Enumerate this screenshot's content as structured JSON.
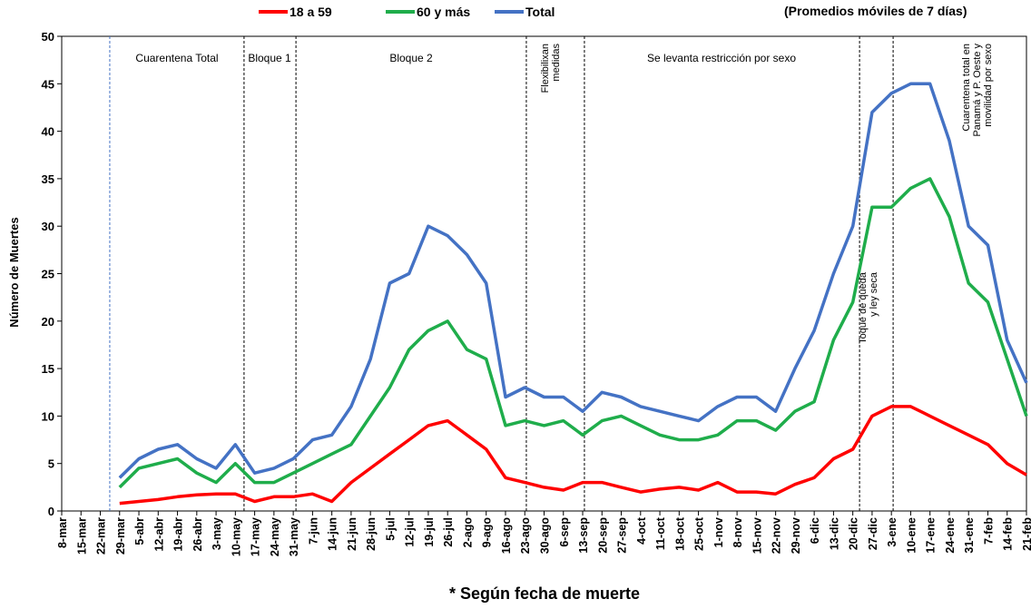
{
  "chart_data": {
    "type": "line",
    "subtitle": "(Promedios móviles de 7 días)",
    "y_label": "Número de Muertes",
    "footnote": "* Según fecha de muerte",
    "categories": [
      "8-mar",
      "15-mar",
      "22-mar",
      "29-mar",
      "5-abr",
      "12-abr",
      "19-abr",
      "26-abr",
      "3-may",
      "10-may",
      "17-may",
      "24-may",
      "31-may",
      "7-jun",
      "14-jun",
      "21-jun",
      "28-jun",
      "5-jul",
      "12-jul",
      "19-jul",
      "26-jul",
      "2-ago",
      "9-ago",
      "16-ago",
      "23-ago",
      "30-ago",
      "6-sep",
      "13-sep",
      "20-sep",
      "27-sep",
      "4-oct",
      "11-oct",
      "18-oct",
      "25-oct",
      "1-nov",
      "8-nov",
      "15-nov",
      "22-nov",
      "29-nov",
      "6-dic",
      "13-dic",
      "20-dic",
      "27-dic",
      "3-ene",
      "10-ene",
      "17-ene",
      "24-ene",
      "31-ene",
      "7-feb",
      "14-feb",
      "21-feb"
    ],
    "series": [
      {
        "name": "18 a 59",
        "color": "#ff0000",
        "values": [
          null,
          null,
          null,
          0.8,
          1,
          1.2,
          1.5,
          1.7,
          1.8,
          1.8,
          1,
          1.5,
          1.5,
          1.8,
          1,
          3,
          4.5,
          6,
          7.5,
          9,
          9.5,
          8,
          6.5,
          3.5,
          3,
          2.5,
          2.2,
          3,
          3,
          2.5,
          2,
          2.3,
          2.5,
          2.2,
          3,
          2,
          2,
          1.8,
          2.8,
          3.5,
          5.5,
          6.5,
          10,
          11,
          11,
          10,
          9,
          8,
          7,
          5,
          3.8
        ]
      },
      {
        "name": "60 y más",
        "color": "#1fad4b",
        "values": [
          null,
          null,
          null,
          2.5,
          4.5,
          5,
          5.5,
          4,
          3,
          5,
          3,
          3,
          4,
          5,
          6,
          7,
          10,
          13,
          17,
          19,
          20,
          17,
          16,
          9,
          9.5,
          9,
          9.5,
          8,
          9.5,
          10,
          9,
          8,
          7.5,
          7.5,
          8,
          9.5,
          9.5,
          8.5,
          10.5,
          11.5,
          18,
          22,
          32,
          32,
          34,
          35,
          31,
          24,
          22,
          16,
          10
        ]
      },
      {
        "name": "Total",
        "color": "#4472c4",
        "values": [
          null,
          null,
          null,
          3.5,
          5.5,
          6.5,
          7,
          5.5,
          4.5,
          7,
          4,
          4.5,
          5.5,
          7.5,
          8,
          11,
          16,
          24,
          25,
          30,
          29,
          27,
          24,
          12,
          13,
          12,
          12,
          10.5,
          12.5,
          12,
          11,
          10.5,
          10,
          9.5,
          11,
          12,
          12,
          10.5,
          15,
          19,
          25,
          30,
          42,
          44,
          45,
          45,
          39,
          30,
          28,
          18,
          13.5
        ]
      }
    ],
    "ylim": [
      0,
      50
    ],
    "yticks": [
      0,
      5,
      10,
      15,
      20,
      25,
      30,
      35,
      40,
      45,
      50
    ],
    "grid": false,
    "annotations": [
      {
        "lines": [
          "Cuarentena Total"
        ]
      },
      {
        "lines": [
          "Bloque 1"
        ]
      },
      {
        "lines": [
          "Bloque 2"
        ]
      },
      {
        "lines": [
          "Flexibilixan",
          "medidas"
        ]
      },
      {
        "lines": [
          "Se levanta restricción por sexo"
        ]
      },
      {
        "lines": [
          "Toque de queda",
          "y ley seca"
        ]
      },
      {
        "lines": [
          "Cuarentena total en",
          "Panamá y P. Oeste y",
          "movilidad por sexo"
        ]
      }
    ]
  }
}
